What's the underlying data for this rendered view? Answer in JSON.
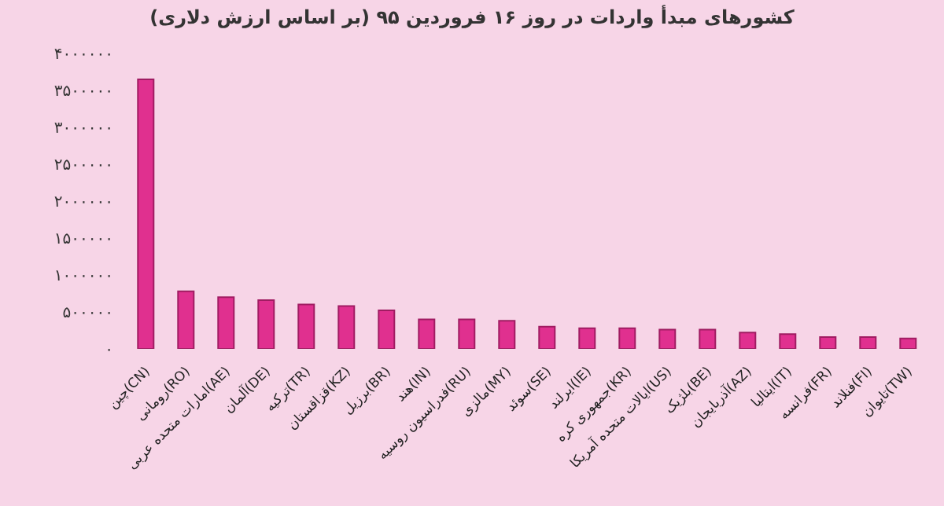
{
  "chart_data": {
    "type": "bar",
    "title": "کشورهای مبدأ واردات در روز ۱۶ فروردین ۹۵ (بر اساس ارزش دلاری)",
    "categories": [
      "چین(CN)",
      "رومانی(RO)",
      "امارات متحده عربی(AE)",
      "آلمان(DE)",
      "ترکیه(TR)",
      "قزاقستان(KZ)",
      "برزیل(BR)",
      "هند(IN)",
      "فدراسیون روسیه(RU)",
      "مالزی(MY)",
      "سوئد(SE)",
      "ایرلند(IE)",
      "جمهوری کره(KR)",
      "ایالات متحده آمریکا(US)",
      "بلژیک(BE)",
      "آذربایجان(AZ)",
      "ایتالیا(IT)",
      "فرانسه(FR)",
      "فنلاند(FI)",
      "تایوان(TW)"
    ],
    "values": [
      3650000,
      780000,
      700000,
      660000,
      600000,
      580000,
      520000,
      400000,
      400000,
      380000,
      300000,
      280000,
      280000,
      260000,
      260000,
      220000,
      200000,
      160000,
      160000,
      140000
    ],
    "color": "#e0308f",
    "ylim": [
      0,
      4000000
    ],
    "yticks": [
      {
        "value": 0,
        "label": "۰"
      },
      {
        "value": 500000,
        "label": "۵۰۰۰۰۰"
      },
      {
        "value": 1000000,
        "label": "۱۰۰۰۰۰۰"
      },
      {
        "value": 1500000,
        "label": "۱۵۰۰۰۰۰"
      },
      {
        "value": 2000000,
        "label": "۲۰۰۰۰۰۰"
      },
      {
        "value": 2500000,
        "label": "۲۵۰۰۰۰۰"
      },
      {
        "value": 3000000,
        "label": "۳۰۰۰۰۰۰"
      },
      {
        "value": 3500000,
        "label": "۳۵۰۰۰۰۰"
      },
      {
        "value": 4000000,
        "label": "۴۰۰۰۰۰۰"
      }
    ]
  }
}
